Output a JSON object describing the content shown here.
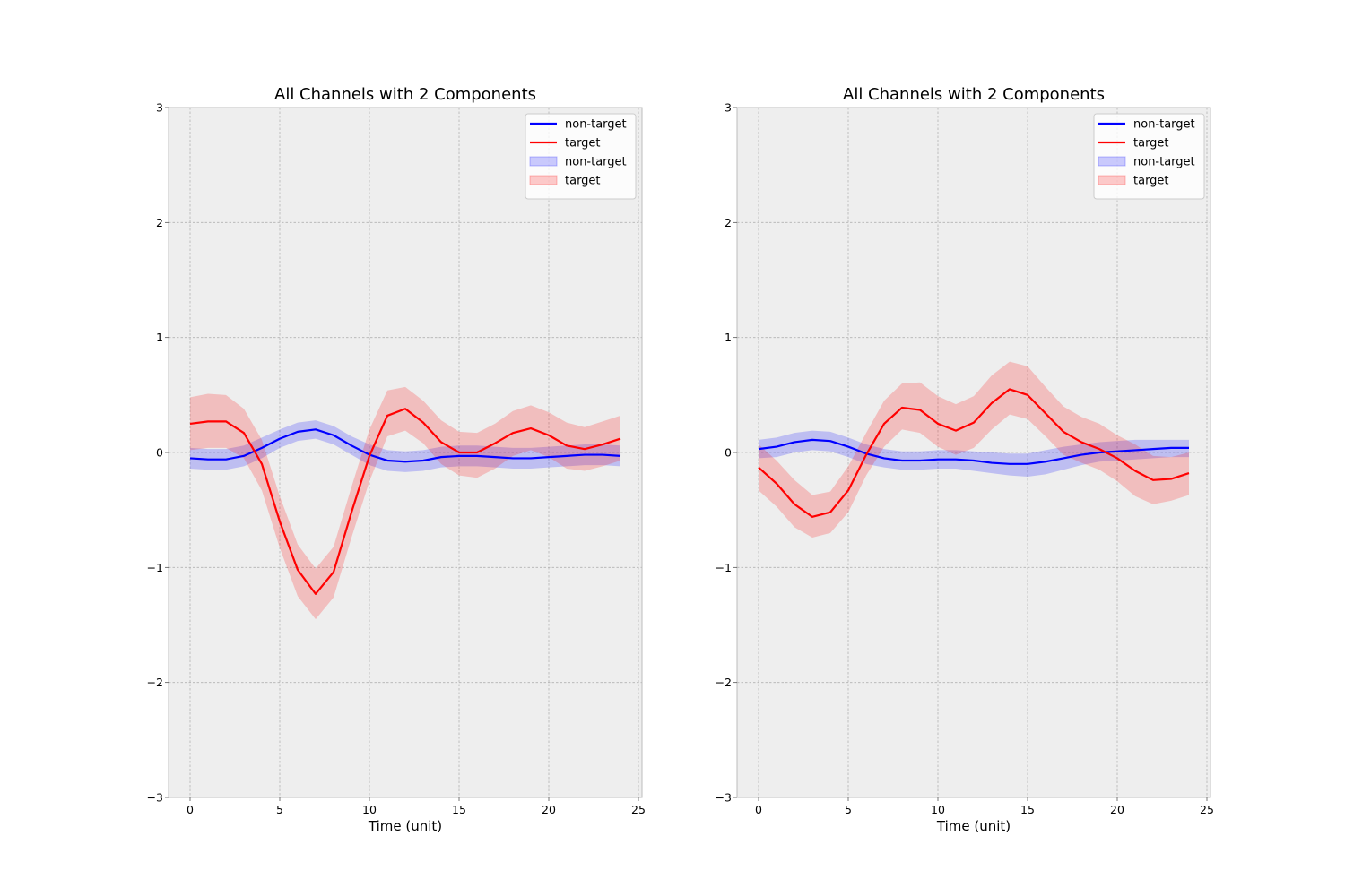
{
  "chart_data": [
    {
      "type": "line",
      "title": "All Channels with 2 Components",
      "xlabel": "Time (unit)",
      "ylabel": "",
      "xlim": [
        -1.2,
        25.2
      ],
      "ylim": [
        -3,
        3
      ],
      "xticks": [
        0,
        5,
        10,
        15,
        20,
        25
      ],
      "yticks": [
        -3,
        -2,
        -1,
        0,
        1,
        2,
        3
      ],
      "xtick_labels": [
        "0",
        "5",
        "10",
        "15",
        "20",
        "25"
      ],
      "ytick_labels": [
        "−3",
        "−2",
        "−1",
        "0",
        "1",
        "2",
        "3"
      ],
      "grid": true,
      "legend_position": "top-right",
      "x": [
        0,
        1,
        2,
        3,
        4,
        5,
        6,
        7,
        8,
        9,
        10,
        11,
        12,
        13,
        14,
        15,
        16,
        17,
        18,
        19,
        20,
        21,
        22,
        23,
        24
      ],
      "series": [
        {
          "name": "non-target",
          "color": "#0000ff",
          "values": [
            -0.05,
            -0.06,
            -0.06,
            -0.03,
            0.04,
            0.12,
            0.18,
            0.2,
            0.15,
            0.06,
            -0.02,
            -0.07,
            -0.08,
            -0.07,
            -0.04,
            -0.03,
            -0.03,
            -0.04,
            -0.05,
            -0.05,
            -0.04,
            -0.03,
            -0.02,
            -0.02,
            -0.03
          ],
          "band_lower": [
            -0.14,
            -0.15,
            -0.15,
            -0.12,
            -0.05,
            0.04,
            0.1,
            0.12,
            0.07,
            -0.02,
            -0.11,
            -0.16,
            -0.17,
            -0.16,
            -0.13,
            -0.12,
            -0.12,
            -0.13,
            -0.14,
            -0.14,
            -0.13,
            -0.12,
            -0.11,
            -0.11,
            -0.12
          ],
          "band_upper": [
            0.04,
            0.03,
            0.03,
            0.06,
            0.13,
            0.2,
            0.26,
            0.28,
            0.23,
            0.14,
            0.07,
            0.02,
            0.01,
            0.02,
            0.05,
            0.06,
            0.06,
            0.05,
            0.04,
            0.04,
            0.05,
            0.06,
            0.07,
            0.07,
            0.06
          ]
        },
        {
          "name": "target",
          "color": "#ff0000",
          "values": [
            0.25,
            0.27,
            0.27,
            0.17,
            -0.1,
            -0.6,
            -1.02,
            -1.23,
            -1.04,
            -0.52,
            -0.03,
            0.32,
            0.38,
            0.26,
            0.09,
            0,
            0,
            0.08,
            0.17,
            0.21,
            0.15,
            0.06,
            0.03,
            0.07,
            0.12
          ],
          "band_lower": [
            0.02,
            0.04,
            0.04,
            -0.05,
            -0.33,
            -0.83,
            -1.25,
            -1.45,
            -1.26,
            -0.74,
            -0.25,
            0.14,
            0.19,
            0.08,
            -0.1,
            -0.2,
            -0.22,
            -0.14,
            -0.03,
            0.02,
            -0.04,
            -0.14,
            -0.16,
            -0.12,
            -0.07
          ],
          "band_upper": [
            0.48,
            0.51,
            0.5,
            0.38,
            0.11,
            -0.38,
            -0.8,
            -1.01,
            -0.82,
            -0.3,
            0.2,
            0.54,
            0.57,
            0.45,
            0.28,
            0.18,
            0.17,
            0.25,
            0.36,
            0.41,
            0.35,
            0.26,
            0.22,
            0.27,
            0.32
          ]
        }
      ],
      "legend": [
        {
          "label": "non-target",
          "kind": "line",
          "color": "#0000ff"
        },
        {
          "label": "target",
          "kind": "line",
          "color": "#ff0000"
        },
        {
          "label": "non-target",
          "kind": "band",
          "color": "#0000ff"
        },
        {
          "label": "target",
          "kind": "band",
          "color": "#ff0000"
        }
      ]
    },
    {
      "type": "line",
      "title": "All Channels with 2 Components",
      "xlabel": "Time (unit)",
      "ylabel": "",
      "xlim": [
        -1.2,
        25.2
      ],
      "ylim": [
        -3,
        3
      ],
      "xticks": [
        0,
        5,
        10,
        15,
        20,
        25
      ],
      "yticks": [
        -3,
        -2,
        -1,
        0,
        1,
        2,
        3
      ],
      "xtick_labels": [
        "0",
        "5",
        "10",
        "15",
        "20",
        "25"
      ],
      "ytick_labels": [
        "−3",
        "−2",
        "−1",
        "0",
        "1",
        "2",
        "3"
      ],
      "grid": true,
      "legend_position": "top-right",
      "x": [
        0,
        1,
        2,
        3,
        4,
        5,
        6,
        7,
        8,
        9,
        10,
        11,
        12,
        13,
        14,
        15,
        16,
        17,
        18,
        19,
        20,
        21,
        22,
        23,
        24
      ],
      "series": [
        {
          "name": "non-target",
          "color": "#0000ff",
          "values": [
            0.03,
            0.05,
            0.09,
            0.11,
            0.1,
            0.05,
            -0.01,
            -0.05,
            -0.07,
            -0.07,
            -0.06,
            -0.06,
            -0.07,
            -0.09,
            -0.1,
            -0.1,
            -0.08,
            -0.05,
            -0.02,
            0,
            0.01,
            0.02,
            0.03,
            0.04,
            0.04
          ],
          "band_lower": [
            -0.05,
            -0.04,
            0,
            0.02,
            0.01,
            -0.04,
            -0.1,
            -0.13,
            -0.15,
            -0.15,
            -0.14,
            -0.14,
            -0.16,
            -0.18,
            -0.2,
            -0.21,
            -0.19,
            -0.15,
            -0.11,
            -0.08,
            -0.07,
            -0.06,
            -0.05,
            -0.04,
            -0.04
          ],
          "band_upper": [
            0.11,
            0.13,
            0.17,
            0.19,
            0.18,
            0.13,
            0.07,
            0.03,
            0.01,
            0.01,
            0.02,
            0.02,
            0.01,
            0,
            -0.01,
            -0.01,
            0.02,
            0.05,
            0.07,
            0.09,
            0.1,
            0.11,
            0.11,
            0.11,
            0.11
          ]
        },
        {
          "name": "target",
          "color": "#ff0000",
          "values": [
            -0.13,
            -0.27,
            -0.45,
            -0.56,
            -0.52,
            -0.33,
            -0.02,
            0.25,
            0.39,
            0.37,
            0.25,
            0.19,
            0.26,
            0.43,
            0.55,
            0.5,
            0.34,
            0.18,
            0.09,
            0.03,
            -0.05,
            -0.16,
            -0.24,
            -0.23,
            -0.18
          ],
          "band_lower": [
            -0.33,
            -0.47,
            -0.65,
            -0.74,
            -0.7,
            -0.52,
            -0.2,
            0.05,
            0.2,
            0.17,
            0.05,
            -0.02,
            0.04,
            0.2,
            0.33,
            0.29,
            0.14,
            -0.02,
            -0.09,
            -0.15,
            -0.25,
            -0.38,
            -0.45,
            -0.42,
            -0.37
          ],
          "band_upper": [
            0.07,
            -0.07,
            -0.24,
            -0.37,
            -0.34,
            -0.12,
            0.17,
            0.45,
            0.6,
            0.61,
            0.49,
            0.42,
            0.49,
            0.67,
            0.79,
            0.75,
            0.57,
            0.4,
            0.31,
            0.25,
            0.15,
            0.07,
            -0.03,
            -0.04,
            0
          ]
        }
      ],
      "legend": [
        {
          "label": "non-target",
          "kind": "line",
          "color": "#0000ff"
        },
        {
          "label": "target",
          "kind": "line",
          "color": "#ff0000"
        },
        {
          "label": "non-target",
          "kind": "band",
          "color": "#0000ff"
        },
        {
          "label": "target",
          "kind": "band",
          "color": "#ff0000"
        }
      ]
    }
  ]
}
